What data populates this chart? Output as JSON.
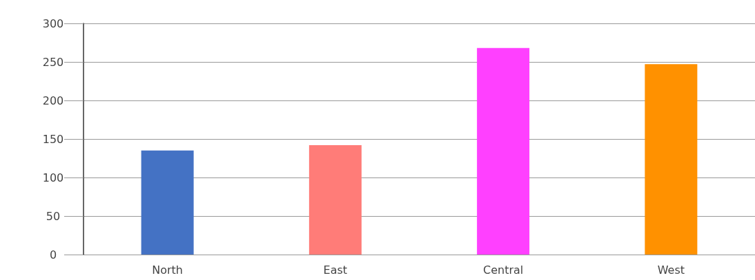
{
  "chart_data": {
    "type": "bar",
    "categories": [
      "North",
      "East",
      "Central",
      "West"
    ],
    "values": [
      135,
      142,
      268,
      247
    ],
    "colors": [
      "#4472c4",
      "#ff7c78",
      "#ff40ff",
      "#ff9100"
    ],
    "ylim": [
      0,
      300
    ],
    "yticks": [
      0,
      50,
      100,
      150,
      200,
      250,
      300
    ],
    "grid": "y"
  }
}
